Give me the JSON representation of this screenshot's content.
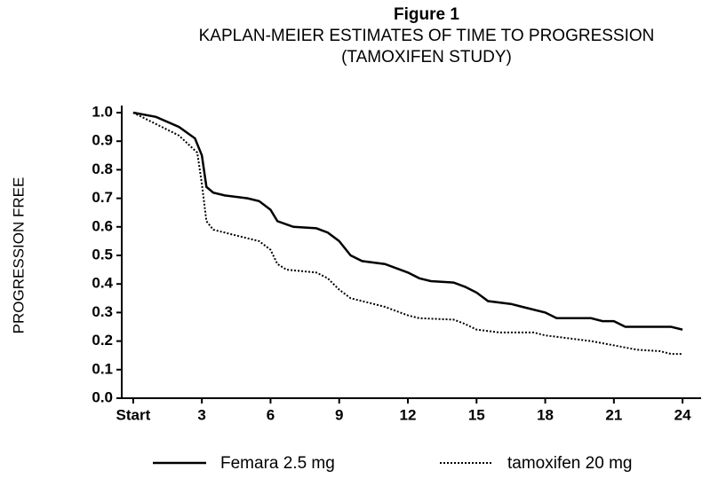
{
  "chart_data": {
    "type": "line",
    "title": "Figure 1",
    "subtitle": [
      "KAPLAN-MEIER ESTIMATES OF TIME TO PROGRESSION",
      "(TAMOXIFEN STUDY)"
    ],
    "y_label": "PROGRESSION FREE",
    "xlim": [
      -0.5,
      24.5
    ],
    "ylim": [
      0,
      1
    ],
    "xticks": [
      {
        "value": 0,
        "label": "Start"
      },
      3,
      6,
      9,
      12,
      15,
      18,
      21,
      24
    ],
    "yticks": [
      {
        "value": 0,
        "label": "0.0"
      },
      0.1,
      0.2,
      0.3,
      0.4,
      0.5,
      0.6,
      0.7,
      0.8,
      0.9,
      {
        "value": 1,
        "label": "1.0"
      }
    ],
    "grid": false,
    "legend": "bottom",
    "series": [
      {
        "name": "Femara 2.5 mg",
        "color": "#000000",
        "dashed": false,
        "x": [
          0,
          1,
          2,
          2.7,
          3,
          3.2,
          3.5,
          4,
          5,
          5.5,
          6,
          6.3,
          7,
          8,
          8.5,
          9,
          9.5,
          10,
          11,
          12,
          12.5,
          13,
          14,
          14.5,
          15,
          15.5,
          16.5,
          17,
          18,
          18.5,
          20,
          20.5,
          21,
          21.5,
          23.5,
          24
        ],
        "values": [
          1.0,
          0.985,
          0.95,
          0.91,
          0.85,
          0.74,
          0.72,
          0.71,
          0.7,
          0.69,
          0.66,
          0.62,
          0.6,
          0.595,
          0.58,
          0.55,
          0.5,
          0.48,
          0.47,
          0.44,
          0.42,
          0.41,
          0.405,
          0.39,
          0.37,
          0.34,
          0.33,
          0.32,
          0.3,
          0.28,
          0.28,
          0.27,
          0.27,
          0.25,
          0.25,
          0.24
        ]
      },
      {
        "name": "tamoxifen 20 mg",
        "color": "#000000",
        "dashed": true,
        "x": [
          0,
          1,
          2,
          2.8,
          3,
          3.2,
          3.5,
          4.5,
          5.5,
          6,
          6.3,
          6.7,
          8,
          8.5,
          9,
          9.5,
          10.5,
          11,
          12,
          12.5,
          14,
          14.5,
          15,
          16,
          17.5,
          18,
          19,
          20,
          21,
          22,
          23,
          23.5,
          24
        ],
        "values": [
          1.0,
          0.96,
          0.92,
          0.86,
          0.75,
          0.62,
          0.59,
          0.57,
          0.55,
          0.52,
          0.47,
          0.45,
          0.44,
          0.42,
          0.38,
          0.35,
          0.33,
          0.32,
          0.29,
          0.28,
          0.275,
          0.26,
          0.24,
          0.23,
          0.23,
          0.22,
          0.21,
          0.2,
          0.185,
          0.17,
          0.165,
          0.155,
          0.155
        ]
      }
    ]
  }
}
